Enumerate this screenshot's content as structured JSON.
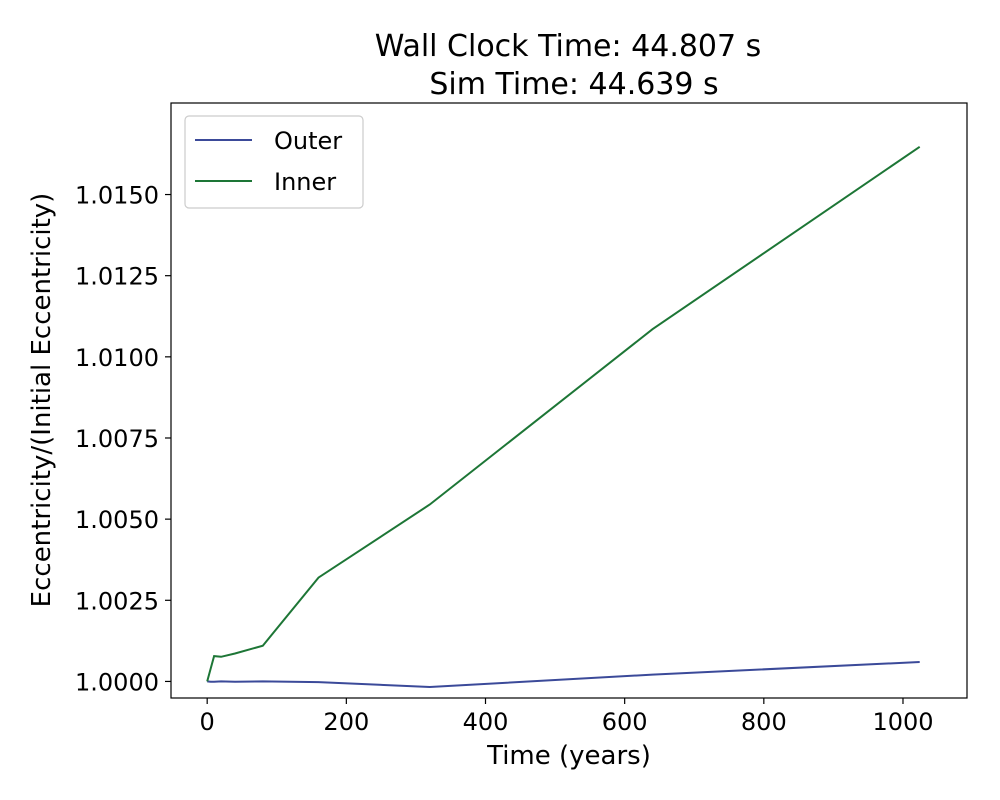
{
  "chart_data": {
    "type": "line",
    "title": [
      "Wall Clock Time: 44.807 s",
      "Sim Time: 44.639 s"
    ],
    "xlabel": "Time (years)",
    "ylabel": "Eccentricity/(Initial Eccentricity)",
    "xlim": [
      -52,
      1092
    ],
    "ylim": [
      0.99949,
      1.01782
    ],
    "xticks": [
      0,
      200,
      400,
      600,
      800,
      1000
    ],
    "xtick_labels": [
      "0",
      "200",
      "400",
      "600",
      "800",
      "1000"
    ],
    "yticks": [
      1.0,
      1.0025,
      1.005,
      1.0075,
      1.01,
      1.0125,
      1.015
    ],
    "ytick_labels": [
      "1.0000",
      "1.0025",
      "1.0050",
      "1.0075",
      "1.0100",
      "1.0125",
      "1.0150"
    ],
    "grid": false,
    "legend_position": "upper-left",
    "series": [
      {
        "name": "Outer",
        "color": "#3b4a99",
        "x": [
          0,
          5,
          10,
          20,
          40,
          80,
          160,
          320,
          640,
          1024
        ],
        "y": [
          1.0,
          0.99999,
          0.99999,
          1.0,
          0.99999,
          1.0,
          0.99998,
          0.99983,
          1.00021,
          1.0006
        ]
      },
      {
        "name": "Inner",
        "color": "#1d7636",
        "x": [
          0,
          5,
          10,
          20,
          40,
          80,
          160,
          320,
          640,
          1024
        ],
        "y": [
          1.0,
          1.0004,
          1.00078,
          1.00076,
          1.00086,
          1.0011,
          1.0032,
          1.00545,
          1.01085,
          1.01647
        ]
      }
    ]
  }
}
